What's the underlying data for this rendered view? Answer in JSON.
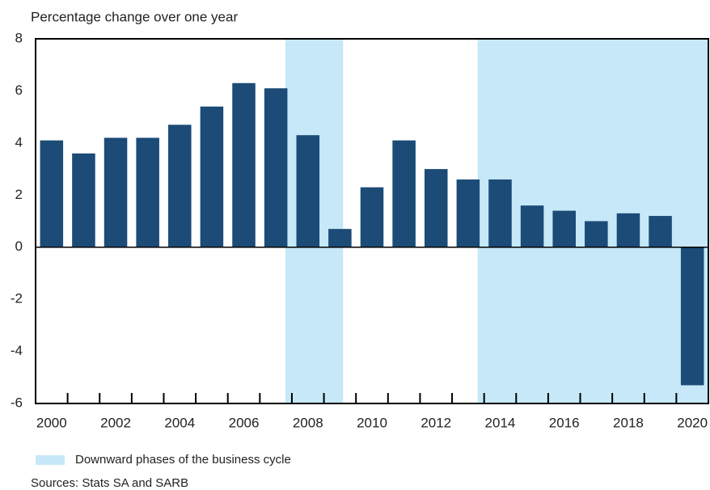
{
  "chart_data": {
    "type": "bar",
    "axis_label": "Percentage change over one year",
    "categories": [
      "2000",
      null,
      "2002",
      null,
      "2004",
      null,
      "2006",
      null,
      "2008",
      null,
      "2010",
      null,
      "2012",
      null,
      "2014",
      null,
      "2016",
      null,
      "2018",
      null,
      "2020"
    ],
    "values": [
      4.1,
      3.6,
      4.2,
      4.2,
      4.7,
      5.4,
      6.3,
      6.1,
      4.3,
      0.7,
      2.3,
      4.1,
      3.0,
      2.6,
      2.6,
      1.6,
      1.4,
      1.0,
      1.3,
      1.2,
      -5.3
    ],
    "color": "#1b4b76",
    "ylim": [
      -6,
      8
    ],
    "yticks": [
      -6,
      -4,
      -2,
      0,
      2,
      4,
      6,
      8
    ],
    "grid": false,
    "shading": {
      "label": "Downward phases of the business cycle",
      "color": "#c6e8f8",
      "periods": [
        [
          2007.3,
          2009.1
        ],
        [
          2013.3,
          2020.5
        ]
      ]
    },
    "source": "Sources: Stats SA and SARB"
  }
}
